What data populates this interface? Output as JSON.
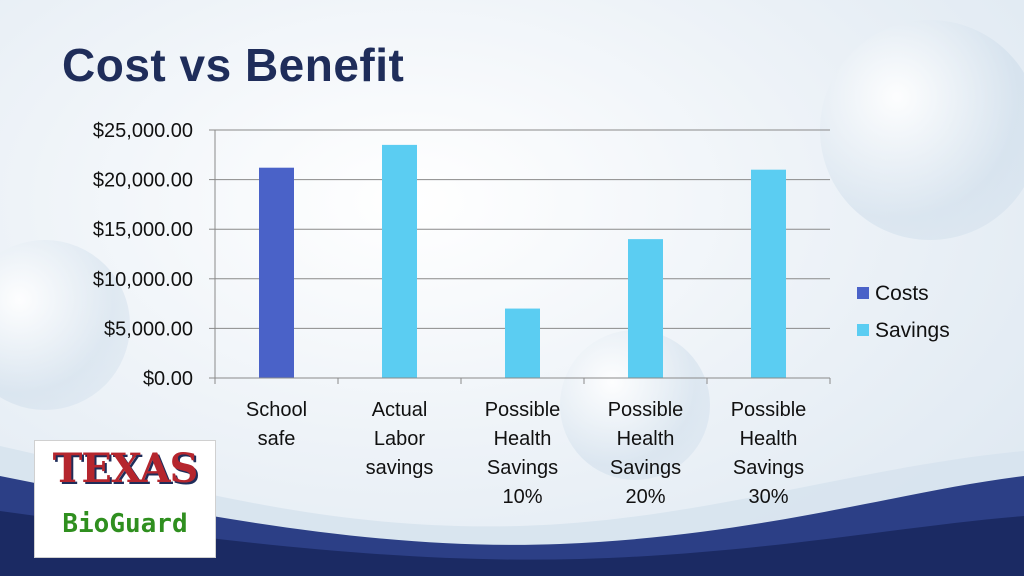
{
  "slide": {
    "title": "Cost vs Benefit"
  },
  "logo": {
    "line1": "TEXAS",
    "line2": "BioGuard"
  },
  "chart_data": {
    "type": "bar",
    "title": "",
    "xlabel": "",
    "ylabel": "",
    "ylim": [
      0,
      25000
    ],
    "yticks": [
      "$0.00",
      "$5,000.00",
      "$10,000.00",
      "$15,000.00",
      "$20,000.00",
      "$25,000.00"
    ],
    "categories": [
      [
        "School",
        "safe"
      ],
      [
        "Actual",
        "Labor",
        "savings"
      ],
      [
        "Possible",
        "Health",
        "Savings",
        "10%"
      ],
      [
        "Possible",
        "Health",
        "Savings",
        "20%"
      ],
      [
        "Possible",
        "Health",
        "Savings",
        "30%"
      ]
    ],
    "series": [
      {
        "name": "Costs",
        "color": "#4a62c8",
        "values": [
          21200,
          null,
          null,
          null,
          null
        ]
      },
      {
        "name": "Savings",
        "color": "#5bcdf2",
        "values": [
          null,
          23500,
          7000,
          14000,
          21000
        ]
      }
    ],
    "grid": true,
    "legend": "right"
  }
}
